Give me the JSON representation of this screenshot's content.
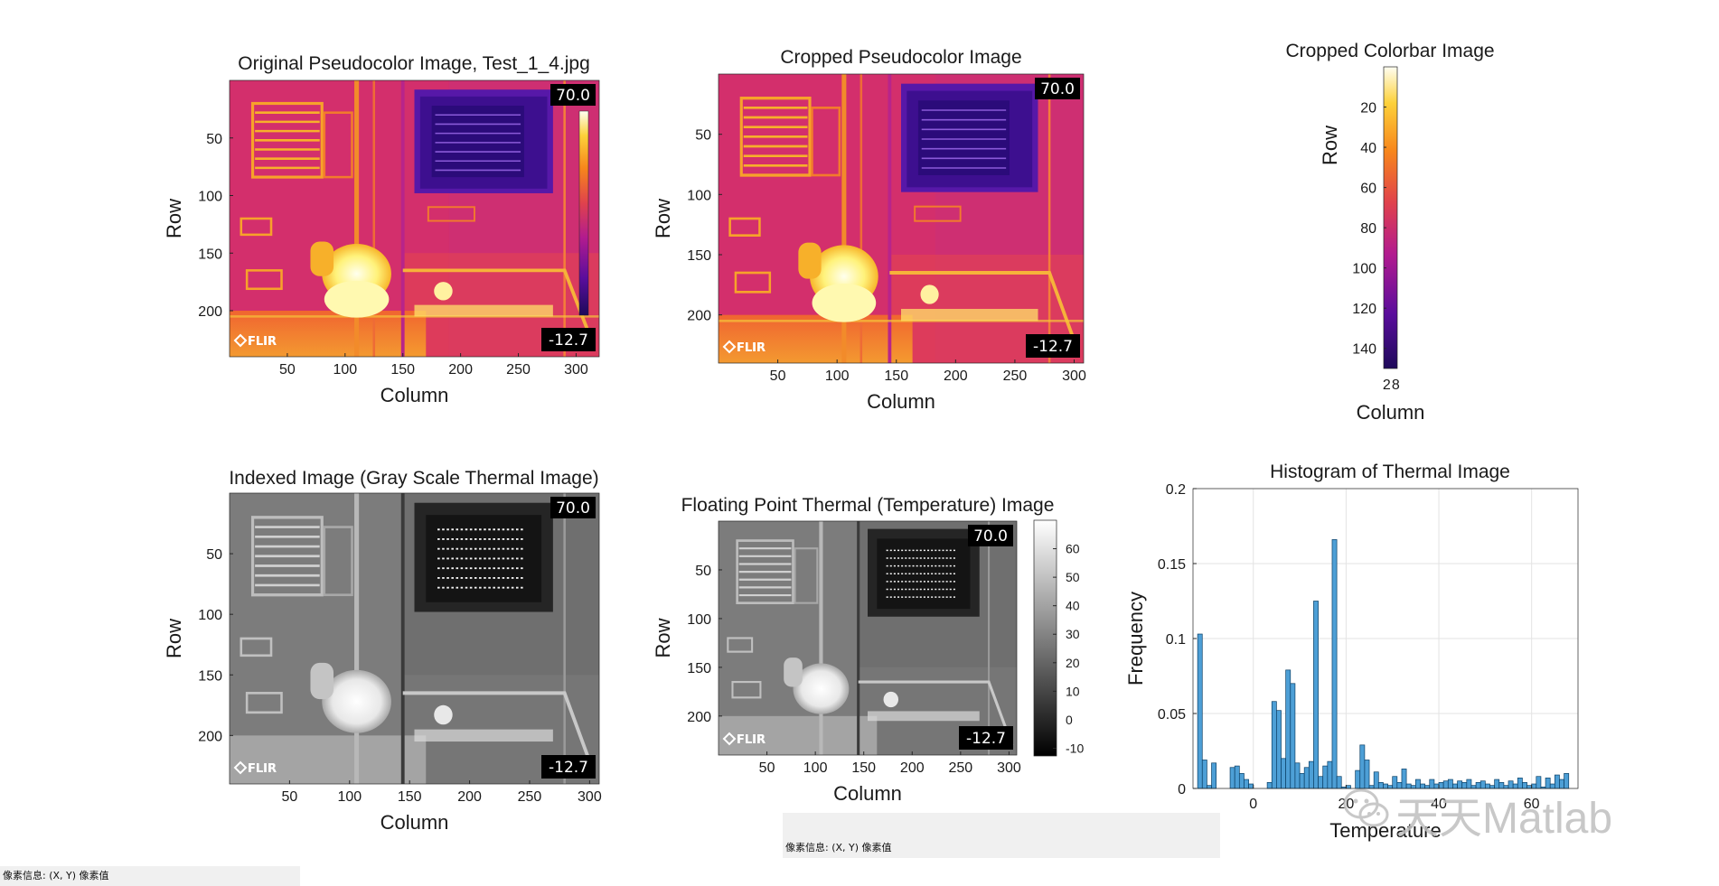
{
  "chart_data": [
    {
      "type": "image",
      "title": "Original Pseudocolor Image, Test_1_4.jpg",
      "xlabel": "Column",
      "ylabel": "Row",
      "xticks": [
        50,
        100,
        150,
        200,
        250,
        300
      ],
      "yticks": [
        50,
        100,
        150,
        200
      ],
      "xlim": [
        0,
        320
      ],
      "ylim": [
        0,
        240
      ],
      "colormap": "ironbow",
      "overlay": {
        "max_label": "70.0",
        "min_label": "-12.7",
        "logo": "FLIR"
      }
    },
    {
      "type": "image",
      "title": "Cropped Pseudocolor Image",
      "xlabel": "Column",
      "ylabel": "Row",
      "xticks": [
        50,
        100,
        150,
        200,
        250,
        300
      ],
      "yticks": [
        50,
        100,
        150,
        200
      ],
      "xlim": [
        0,
        308
      ],
      "ylim": [
        0,
        240
      ],
      "colormap": "ironbow",
      "overlay": {
        "max_label": "70.0",
        "min_label": "-12.7",
        "logo": "FLIR"
      }
    },
    {
      "type": "image",
      "title": "Cropped Colorbar Image",
      "xlabel": "Column",
      "ylabel": "Row",
      "xticks": [
        2,
        8
      ],
      "yticks": [
        20,
        40,
        60,
        80,
        100,
        120,
        140
      ],
      "xlim": [
        0,
        9
      ],
      "ylim": [
        0,
        150
      ],
      "colormap": "ironbow-reversed"
    },
    {
      "type": "image",
      "title": "Indexed Image (Gray Scale Thermal Image)",
      "xlabel": "Column",
      "ylabel": "Row",
      "xticks": [
        50,
        100,
        150,
        200,
        250,
        300
      ],
      "yticks": [
        50,
        100,
        150,
        200
      ],
      "xlim": [
        0,
        308
      ],
      "ylim": [
        0,
        240
      ],
      "colormap": "gray",
      "overlay": {
        "max_label": "70.0",
        "min_label": "-12.7",
        "logo": "FLIR"
      }
    },
    {
      "type": "image",
      "title": "Floating Point Thermal (Temperature) Image",
      "xlabel": "Column",
      "ylabel": "Row",
      "xticks": [
        50,
        100,
        150,
        200,
        250,
        300
      ],
      "yticks": [
        50,
        100,
        150,
        200
      ],
      "xlim": [
        0,
        308
      ],
      "ylim": [
        0,
        240
      ],
      "colormap": "gray",
      "colorbar": {
        "ticks": [
          -10,
          0,
          10,
          20,
          30,
          40,
          50,
          60
        ],
        "lim": [
          -12.7,
          70
        ]
      },
      "overlay": {
        "max_label": "70.0",
        "min_label": "-12.7",
        "logo": "FLIR"
      }
    },
    {
      "type": "bar",
      "title": "Histogram of Thermal Image",
      "xlabel": "Temperature",
      "ylabel": "Frequency",
      "xlim": [
        -13,
        70
      ],
      "ylim": [
        0,
        0.2
      ],
      "yticks": [
        0,
        0.05,
        0.1,
        0.15,
        0.2
      ],
      "ytick_labels": [
        "0",
        "0.05",
        "0.1",
        "0.15",
        "0.2"
      ],
      "xticks": [
        0,
        20,
        40,
        60
      ],
      "xtick_labels": [
        "0",
        "20",
        "40",
        "60"
      ],
      "grid": true,
      "bin_width": 1,
      "x": [
        -11.5,
        -10.5,
        -9.5,
        -8.5,
        -4.5,
        -3.5,
        -2.5,
        -1.5,
        -0.5,
        3.5,
        4.5,
        5.5,
        6.5,
        7.5,
        8.5,
        9.5,
        10.5,
        11.5,
        12.5,
        13.5,
        14.5,
        15.5,
        16.5,
        17.5,
        18.5,
        19.5,
        20.5,
        22.5,
        23.5,
        24.5,
        25.5,
        26.5,
        27.5,
        28.5,
        29.5,
        30.5,
        31.5,
        32.5,
        33.5,
        34.5,
        35.5,
        36.5,
        37.5,
        38.5,
        39.5,
        40.5,
        41.5,
        42.5,
        43.5,
        44.5,
        45.5,
        46.5,
        47.5,
        48.5,
        49.5,
        50.5,
        51.5,
        52.5,
        53.5,
        54.5,
        55.5,
        56.5,
        57.5,
        58.5,
        59.5,
        60.5,
        61.5,
        62.5,
        63.5,
        64.5,
        65.5,
        66.5,
        67.5
      ],
      "values": [
        0.103,
        0.019,
        0.002,
        0.017,
        0.014,
        0.015,
        0.01,
        0.006,
        0.003,
        0.004,
        0.058,
        0.052,
        0.02,
        0.079,
        0.07,
        0.017,
        0.01,
        0.014,
        0.018,
        0.125,
        0.008,
        0.015,
        0.018,
        0.166,
        0.008,
        0.001,
        0.002,
        0.012,
        0.029,
        0.019,
        0.002,
        0.011,
        0.004,
        0.003,
        0.002,
        0.008,
        0.004,
        0.013,
        0.003,
        0.002,
        0.006,
        0.003,
        0.002,
        0.006,
        0.003,
        0.004,
        0.005,
        0.006,
        0.003,
        0.005,
        0.004,
        0.006,
        0.002,
        0.004,
        0.005,
        0.003,
        0.002,
        0.006,
        0.004,
        0.002,
        0.005,
        0.003,
        0.007,
        0.004,
        0.002,
        0.003,
        0.008,
        0.001,
        0.007,
        0.003,
        0.009,
        0.006,
        0.01
      ]
    }
  ],
  "status": {
    "pixel_info_1": "像素信息: (X, Y)  像素值",
    "pixel_info_2": "像素信息: (X, Y)  像素值"
  },
  "watermark": {
    "text": "天天Matlab"
  },
  "colors": {
    "bar_fill": "#4d9fd6",
    "bar_edge": "#0a3f66",
    "axis": "#262626",
    "grid": "#e3e3e3",
    "status_bg": "#f0f0f0"
  }
}
